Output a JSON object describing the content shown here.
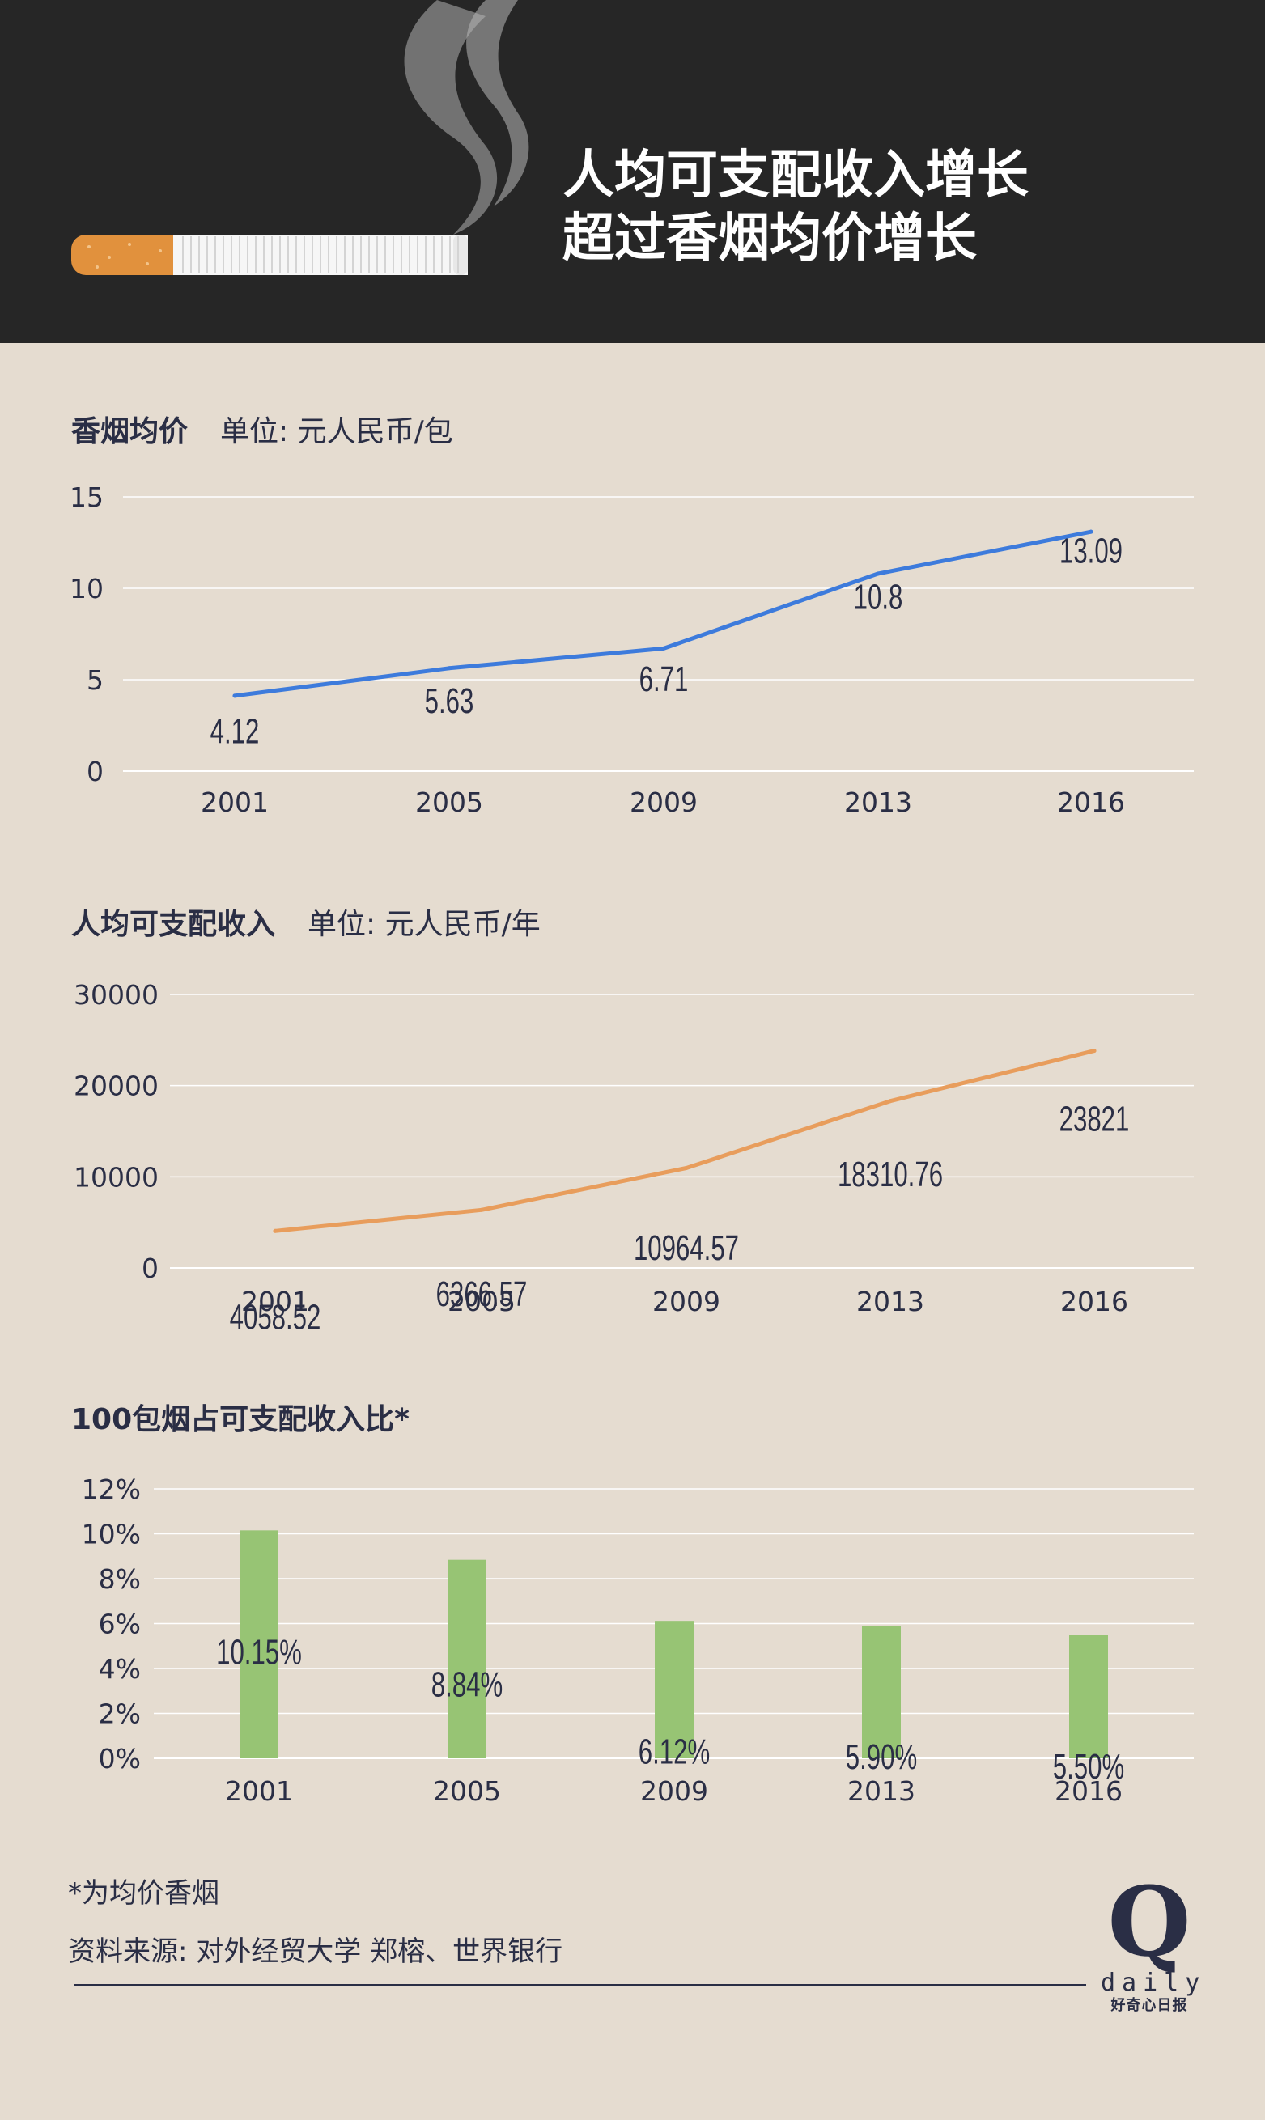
{
  "header": {
    "title_line1": "人均可支配收入增长",
    "title_line2": "超过香烟均价增长"
  },
  "sections": [
    {
      "title": "香烟均价",
      "unit": "单位:  元人民币/包"
    },
    {
      "title": "人均可支配收入",
      "unit": "单位:  元人民币/年"
    },
    {
      "title": "100包烟占可支配收入比*",
      "unit": ""
    }
  ],
  "colors": {
    "price_line": "#3d7bdc",
    "income_line": "#e89d5c",
    "ratio_bar": "#97c474",
    "text": "#2a2e45",
    "grid": "#ffffff",
    "background": "#e5dcd0",
    "header_bg": "#262626"
  },
  "chart_data": [
    {
      "type": "line",
      "title": "香烟均价",
      "unit": "单位:  元人民币/包",
      "categories": [
        "2001",
        "2005",
        "2009",
        "2013",
        "2016"
      ],
      "values": [
        4.12,
        5.63,
        6.71,
        10.8,
        13.09
      ],
      "labels": [
        "4.12",
        "5.63",
        "6.71",
        "10.8",
        "13.09"
      ],
      "yticks": [
        "0",
        "5",
        "10",
        "15"
      ],
      "ylim": [
        0,
        15
      ],
      "grid": true
    },
    {
      "type": "line",
      "title": "人均可支配收入",
      "unit": "单位:  元人民币/年",
      "categories": [
        "2001",
        "2005",
        "2009",
        "2013",
        "2016"
      ],
      "values": [
        4058.52,
        6366.57,
        10964.57,
        18310.76,
        23821
      ],
      "labels": [
        "4058.52",
        "6366.57",
        "10964.57",
        "18310.76",
        "23821"
      ],
      "yticks": [
        "0",
        "10000",
        "20000",
        "30000"
      ],
      "ylim": [
        0,
        30000
      ],
      "grid": true
    },
    {
      "type": "bar",
      "title": "100包烟占可支配收入比*",
      "categories": [
        "2001",
        "2005",
        "2009",
        "2013",
        "2016"
      ],
      "values": [
        10.15,
        8.84,
        6.12,
        5.9,
        5.5
      ],
      "labels": [
        "10.15%",
        "8.84%",
        "6.12%",
        "5.90%",
        "5.50%"
      ],
      "yticks": [
        "0%",
        "2%",
        "4%",
        "6%",
        "8%",
        "10%",
        "12%"
      ],
      "ylim": [
        0,
        12
      ],
      "grid": true
    }
  ],
  "footnotes": {
    "note": "*为均价香烟",
    "source": "资料来源: 对外经贸大学 郑榕、世界银行"
  },
  "logo": {
    "letter": "Q",
    "word": "daily",
    "tagline": "好奇心日报"
  }
}
